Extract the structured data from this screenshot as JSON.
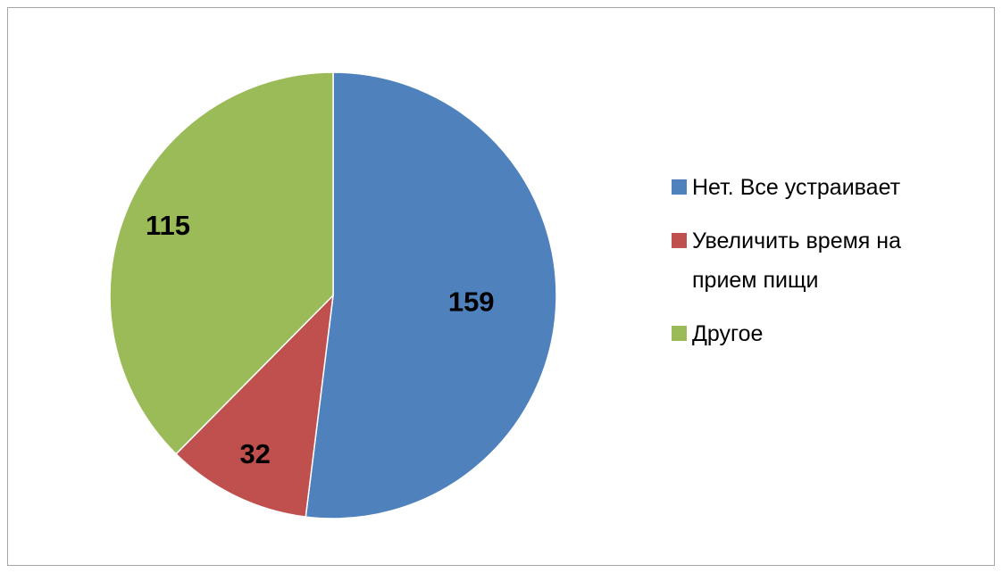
{
  "chart_data": {
    "type": "pie",
    "categories": [
      "Нет. Все устраивает",
      "Увеличить время на прием пищи",
      "Другое"
    ],
    "values": [
      159,
      32,
      115
    ],
    "colors": [
      "#4f81bd",
      "#c0504d",
      "#9bbb59"
    ],
    "legend": "right"
  }
}
